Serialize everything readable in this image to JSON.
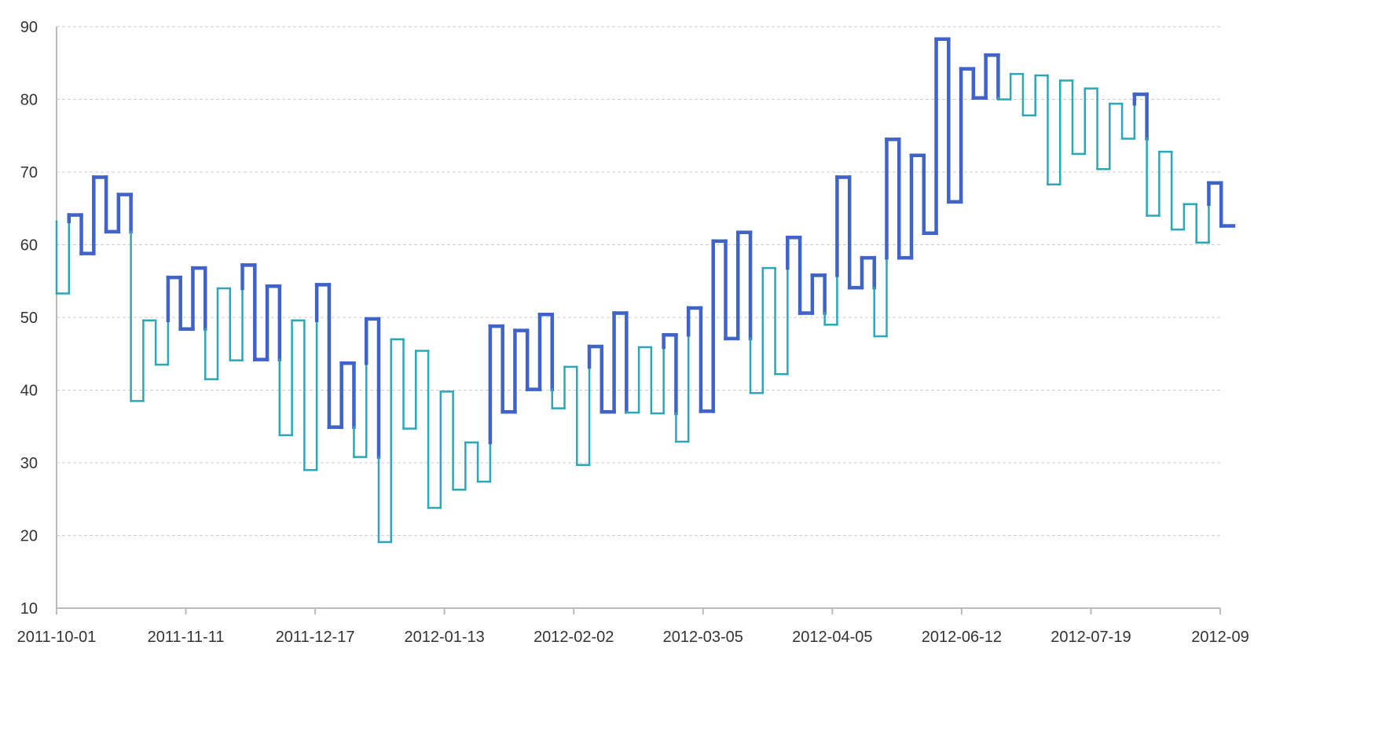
{
  "chart_data": {
    "type": "line",
    "style": "kagi",
    "title": "",
    "xlabel": "",
    "ylabel": "",
    "ylim": [
      10,
      90
    ],
    "yticks": [
      10,
      20,
      30,
      40,
      50,
      60,
      70,
      80,
      90
    ],
    "xtick_labels": [
      "2011-10-01",
      "2011-11-11",
      "2011-12-17",
      "2012-01-13",
      "2012-02-02",
      "2012-03-05",
      "2012-04-05",
      "2012-06-12",
      "2012-07-19",
      "2012-09"
    ],
    "grid": true,
    "colors": {
      "up": "#3f63c9",
      "down": "#2aa8b8",
      "axis": "#bbbbbb",
      "grid": "#cccccc",
      "text": "#333333"
    },
    "values": [
      63.2,
      53.3,
      64.1,
      58.8,
      69.3,
      61.8,
      66.9,
      38.5,
      49.6,
      43.5,
      55.5,
      48.4,
      56.8,
      41.5,
      54.0,
      44.1,
      57.2,
      44.2,
      54.3,
      33.8,
      49.6,
      29.0,
      54.5,
      34.9,
      43.7,
      30.8,
      49.8,
      19.1,
      47.0,
      34.7,
      45.4,
      23.8,
      39.8,
      26.3,
      32.8,
      27.4,
      48.8,
      37.0,
      48.2,
      40.1,
      50.4,
      37.5,
      43.2,
      29.7,
      46.0,
      37.0,
      50.6,
      36.9,
      45.9,
      36.8,
      47.6,
      32.9,
      51.3,
      37.1,
      60.5,
      47.1,
      61.7,
      39.6,
      56.8,
      42.2,
      61.0,
      50.6,
      55.8,
      49.0,
      69.3,
      54.1,
      58.2,
      47.4,
      74.5,
      58.2,
      72.3,
      61.6,
      88.3,
      65.9,
      84.2,
      80.2,
      86.1,
      80.0,
      83.5,
      77.8,
      83.3,
      68.3,
      82.6,
      72.5,
      81.5,
      70.4,
      79.4,
      74.6,
      80.7,
      64.0,
      72.8,
      62.1,
      65.6,
      60.3,
      68.5,
      62.6
    ]
  }
}
